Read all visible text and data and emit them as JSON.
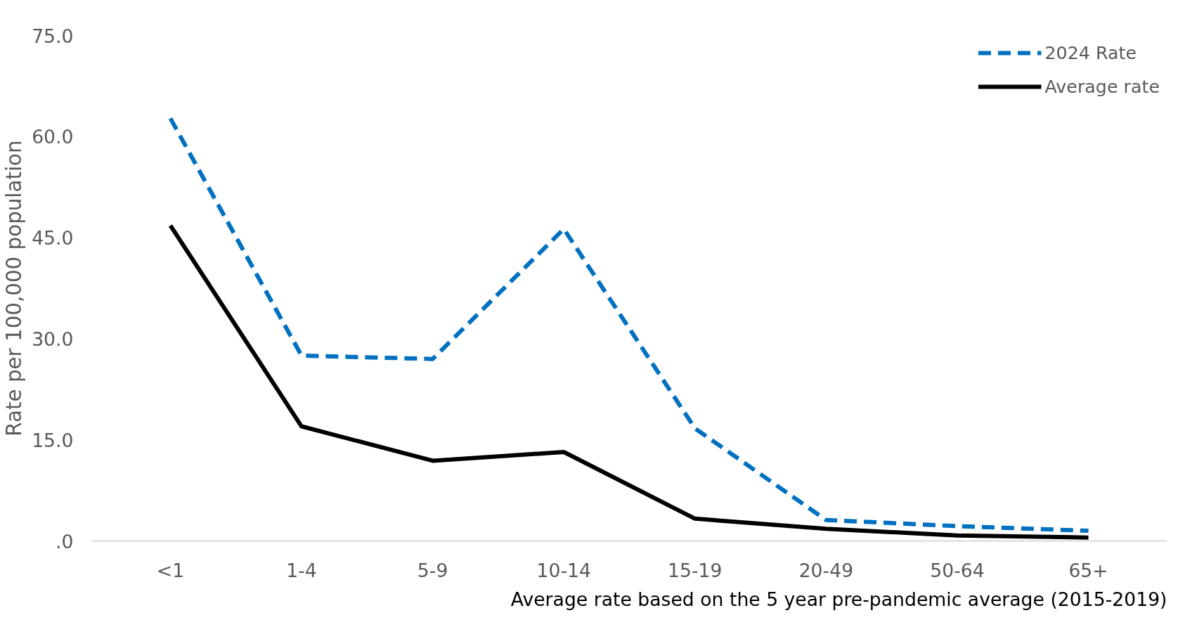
{
  "chart_data": {
    "type": "line",
    "ylabel": "Rate per 100,000 population",
    "categories": [
      "<1",
      "1-4",
      "5-9",
      "10-14",
      "15-19",
      "20-49",
      "50-64",
      "65+"
    ],
    "series": [
      {
        "name": "2024 Rate",
        "color": "#0070c0",
        "line_style": "dashed",
        "values": [
          62.7,
          27.5,
          27.0,
          46.3,
          16.7,
          3.1,
          2.2,
          1.5
        ]
      },
      {
        "name": "Average rate",
        "color": "#000000",
        "line_style": "solid",
        "values": [
          46.8,
          17.0,
          11.9,
          13.2,
          3.3,
          1.8,
          0.8,
          0.5
        ]
      }
    ],
    "ylim": [
      0,
      75
    ],
    "yticks": [
      {
        "value": 0,
        "label": ".0"
      },
      {
        "value": 15,
        "label": "15.0"
      },
      {
        "value": 30,
        "label": "30.0"
      },
      {
        "value": 45,
        "label": "45.0"
      },
      {
        "value": 60,
        "label": "60.0"
      },
      {
        "value": 75,
        "label": "75.0"
      }
    ],
    "grid": false,
    "legend": "top right",
    "marker": "none",
    "annotations": [
      "Average rate based on the 5 year pre-pandemic average (2015-2019)"
    ]
  }
}
